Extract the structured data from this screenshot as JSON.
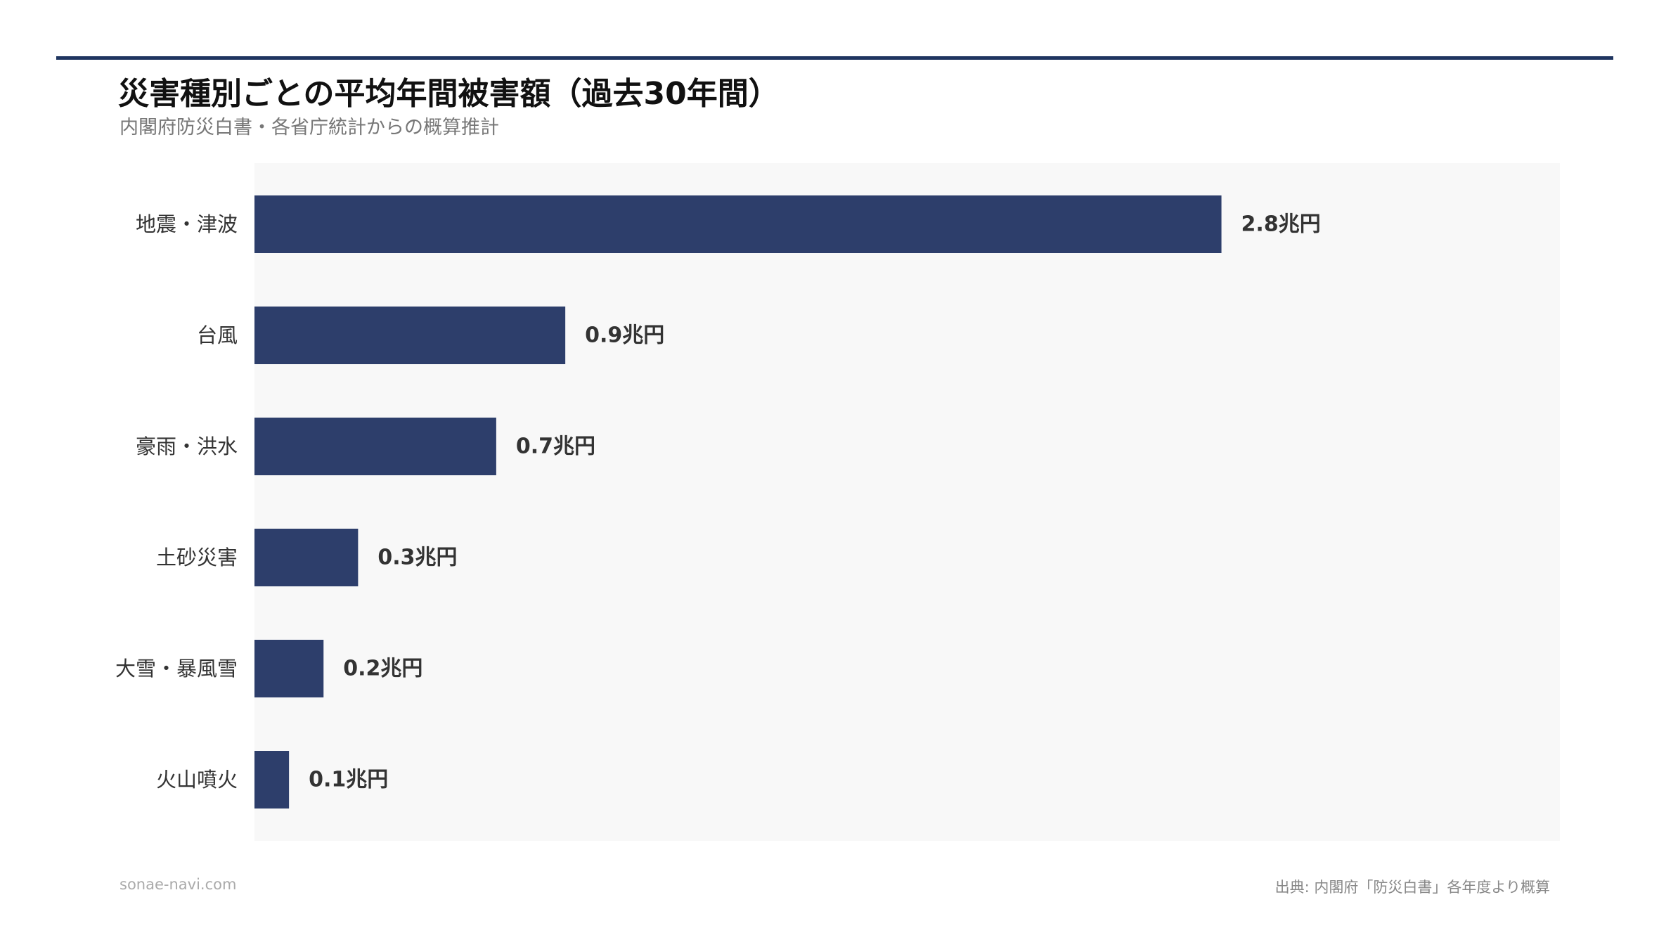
{
  "page": {
    "title": "災害種別ごとの平均年間被害額（過去30年間）",
    "subtitle": "内閣府防災白書・各省庁統計からの概算推計",
    "footer_left": "sonae-navi.com",
    "footer_right": "出典: 内閣府「防災白書」各年度より概算"
  },
  "colors": {
    "bar": "#2d3e6b",
    "rule": "#1f3560",
    "plot_bg": "#f8f8f8"
  },
  "chart_data": {
    "type": "bar",
    "orientation": "horizontal",
    "categories": [
      "地震・津波",
      "台風",
      "豪雨・洪水",
      "土砂災害",
      "大雪・暴風雪",
      "火山噴火"
    ],
    "values": [
      2.8,
      0.9,
      0.7,
      0.3,
      0.2,
      0.1
    ],
    "data_labels": [
      "2.8兆円",
      "0.9兆円",
      "0.7兆円",
      "0.3兆円",
      "0.2兆円",
      "0.1兆円"
    ],
    "unit": "兆円",
    "xlim": [
      0,
      3.78
    ],
    "grid": false,
    "legend": "none"
  }
}
